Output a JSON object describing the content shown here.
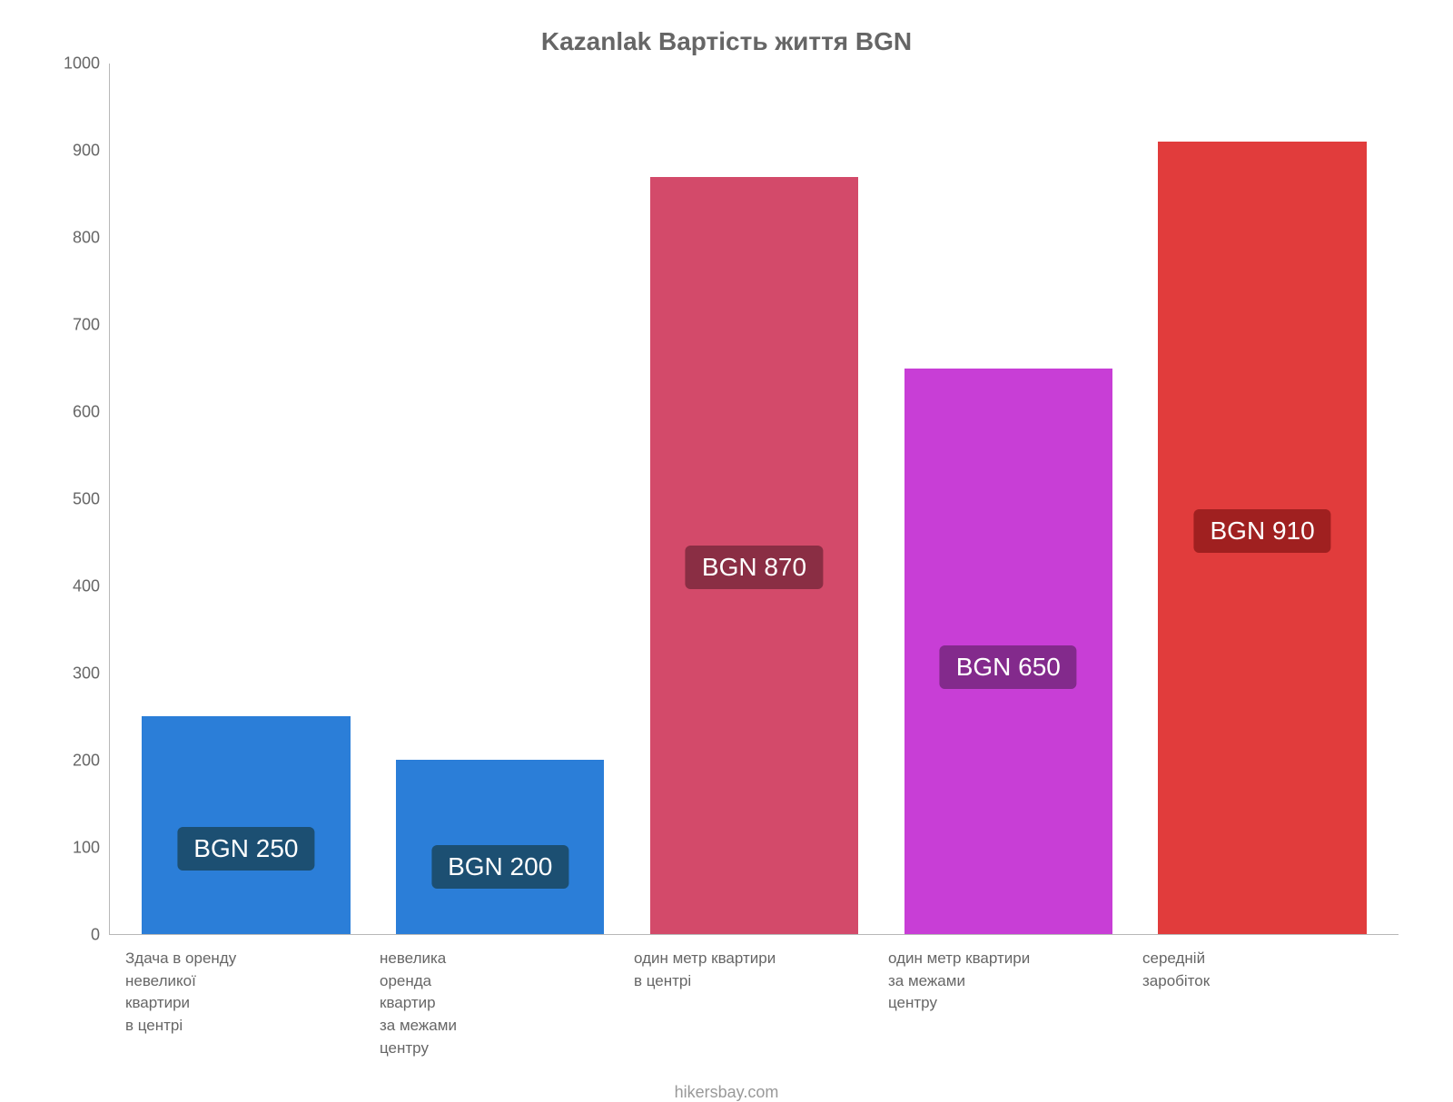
{
  "chart": {
    "type": "bar",
    "title": "Kazanlak Вартість життя BGN",
    "title_fontsize": 28,
    "title_color": "#666666",
    "background_color": "#ffffff",
    "axis_color": "#b8b8b8",
    "tick_color": "#666666",
    "tick_fontsize": 18,
    "x_label_fontsize": 17,
    "ylim": [
      0,
      1000
    ],
    "ytick_step": 100,
    "yticks": [
      0,
      100,
      200,
      300,
      400,
      500,
      600,
      700,
      800,
      900,
      1000
    ],
    "bar_width_pct": 82,
    "data_label_fontsize": 28,
    "categories": [
      "Здача в оренду\nневеликої\nквартири\nв центрі",
      "невелика\nоренда\nквартир\nза межами\nцентру",
      "один метр квартири\nв центрі",
      "один метр квартири\nза межами\nцентру",
      "середній\nзаробіток"
    ],
    "values": [
      250,
      200,
      870,
      650,
      910
    ],
    "value_labels": [
      "BGN 250",
      "BGN 200",
      "BGN 870",
      "BGN 650",
      "BGN 910"
    ],
    "bar_colors": [
      "#2b7ed8",
      "#2b7ed8",
      "#d34a6a",
      "#c83ed6",
      "#e13c3c"
    ],
    "label_bg_colors": [
      "#1c4f72",
      "#1c4f72",
      "#8a2e44",
      "#832a8c",
      "#a02020"
    ],
    "label_y_offset": [
      70,
      50,
      380,
      270,
      420
    ]
  },
  "footer": "hikersbay.com"
}
